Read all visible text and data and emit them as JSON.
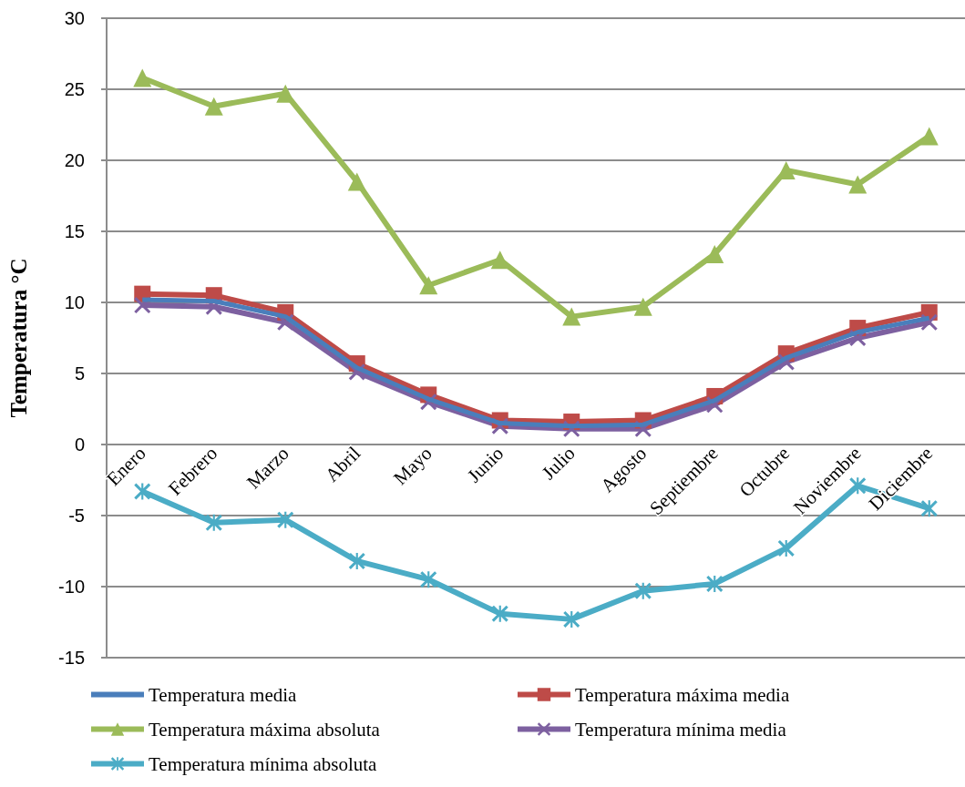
{
  "chart_data": {
    "type": "line",
    "ylabel": "Temperatura °C",
    "categories": [
      "Enero",
      "Febrero",
      "Marzo",
      "Abril",
      "Mayo",
      "Junio",
      "Julio",
      "Agosto",
      "Septiembre",
      "Octubre",
      "Noviembre",
      "Diciembre"
    ],
    "series": [
      {
        "name": "Temperatura media",
        "color": "#4a7ebb",
        "marker": "none",
        "values": [
          10.2,
          10.1,
          9.0,
          5.4,
          3.2,
          1.5,
          1.3,
          1.4,
          3.1,
          6.1,
          7.9,
          8.9
        ]
      },
      {
        "name": "Temperatura máxima media",
        "color": "#be4b48",
        "marker": "square",
        "values": [
          10.6,
          10.5,
          9.3,
          5.7,
          3.5,
          1.7,
          1.6,
          1.7,
          3.4,
          6.4,
          8.2,
          9.3
        ]
      },
      {
        "name": "Temperatura máxima absoluta",
        "color": "#9bbb59",
        "marker": "triangle",
        "values": [
          25.8,
          23.8,
          24.7,
          18.5,
          11.2,
          13.0,
          9.0,
          9.7,
          13.4,
          19.3,
          18.3,
          21.7
        ]
      },
      {
        "name": "Temperatura mínima media",
        "color": "#7d60a0",
        "marker": "cross",
        "values": [
          9.8,
          9.7,
          8.6,
          5.1,
          3.0,
          1.3,
          1.1,
          1.1,
          2.8,
          5.8,
          7.5,
          8.6
        ]
      },
      {
        "name": "Temperatura mínima absoluta",
        "color": "#4bacc6",
        "marker": "star",
        "values": [
          -3.3,
          -5.5,
          -5.3,
          -8.2,
          -9.5,
          -11.9,
          -12.3,
          -10.3,
          -9.8,
          -7.3,
          -2.9,
          -4.5
        ]
      }
    ],
    "ylim": [
      -15,
      30
    ],
    "yticks": [
      -15,
      -10,
      -5,
      0,
      5,
      10,
      15,
      20,
      25,
      30
    ],
    "grid": "y",
    "legend": "bottom",
    "line_style": "solid"
  }
}
